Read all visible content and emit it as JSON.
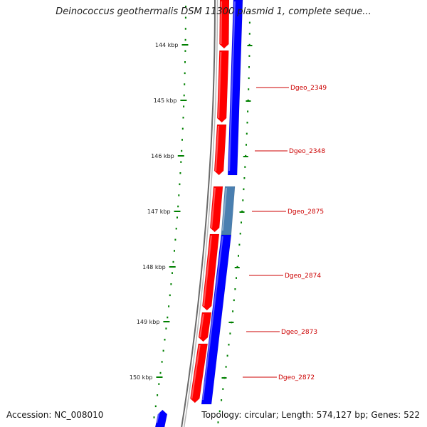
{
  "title": "Deinococcus geothermalis DSM 11300 plasmid 1, complete seque...",
  "footer": {
    "accession": "Accession: NC_008010",
    "topology": "Topology: circular; Length: 574,127 bp; Genes: 522"
  },
  "axis": {
    "ticks": [
      "144 kbp",
      "145 kbp",
      "146 kbp",
      "147 kbp",
      "148 kbp",
      "149 kbp",
      "150 kbp"
    ]
  },
  "genes": [
    "Dgeo_2349",
    "Dgeo_2348",
    "Dgeo_2875",
    "Dgeo_2874",
    "Dgeo_2873",
    "Dgeo_2872"
  ],
  "colors": {
    "forward_strand": "#ff0000",
    "reverse_strand": "#0000ff",
    "highlight_gene": "#4a7fb0",
    "tick": "#008000",
    "label": "#cc0000",
    "backbone": "#888888"
  }
}
